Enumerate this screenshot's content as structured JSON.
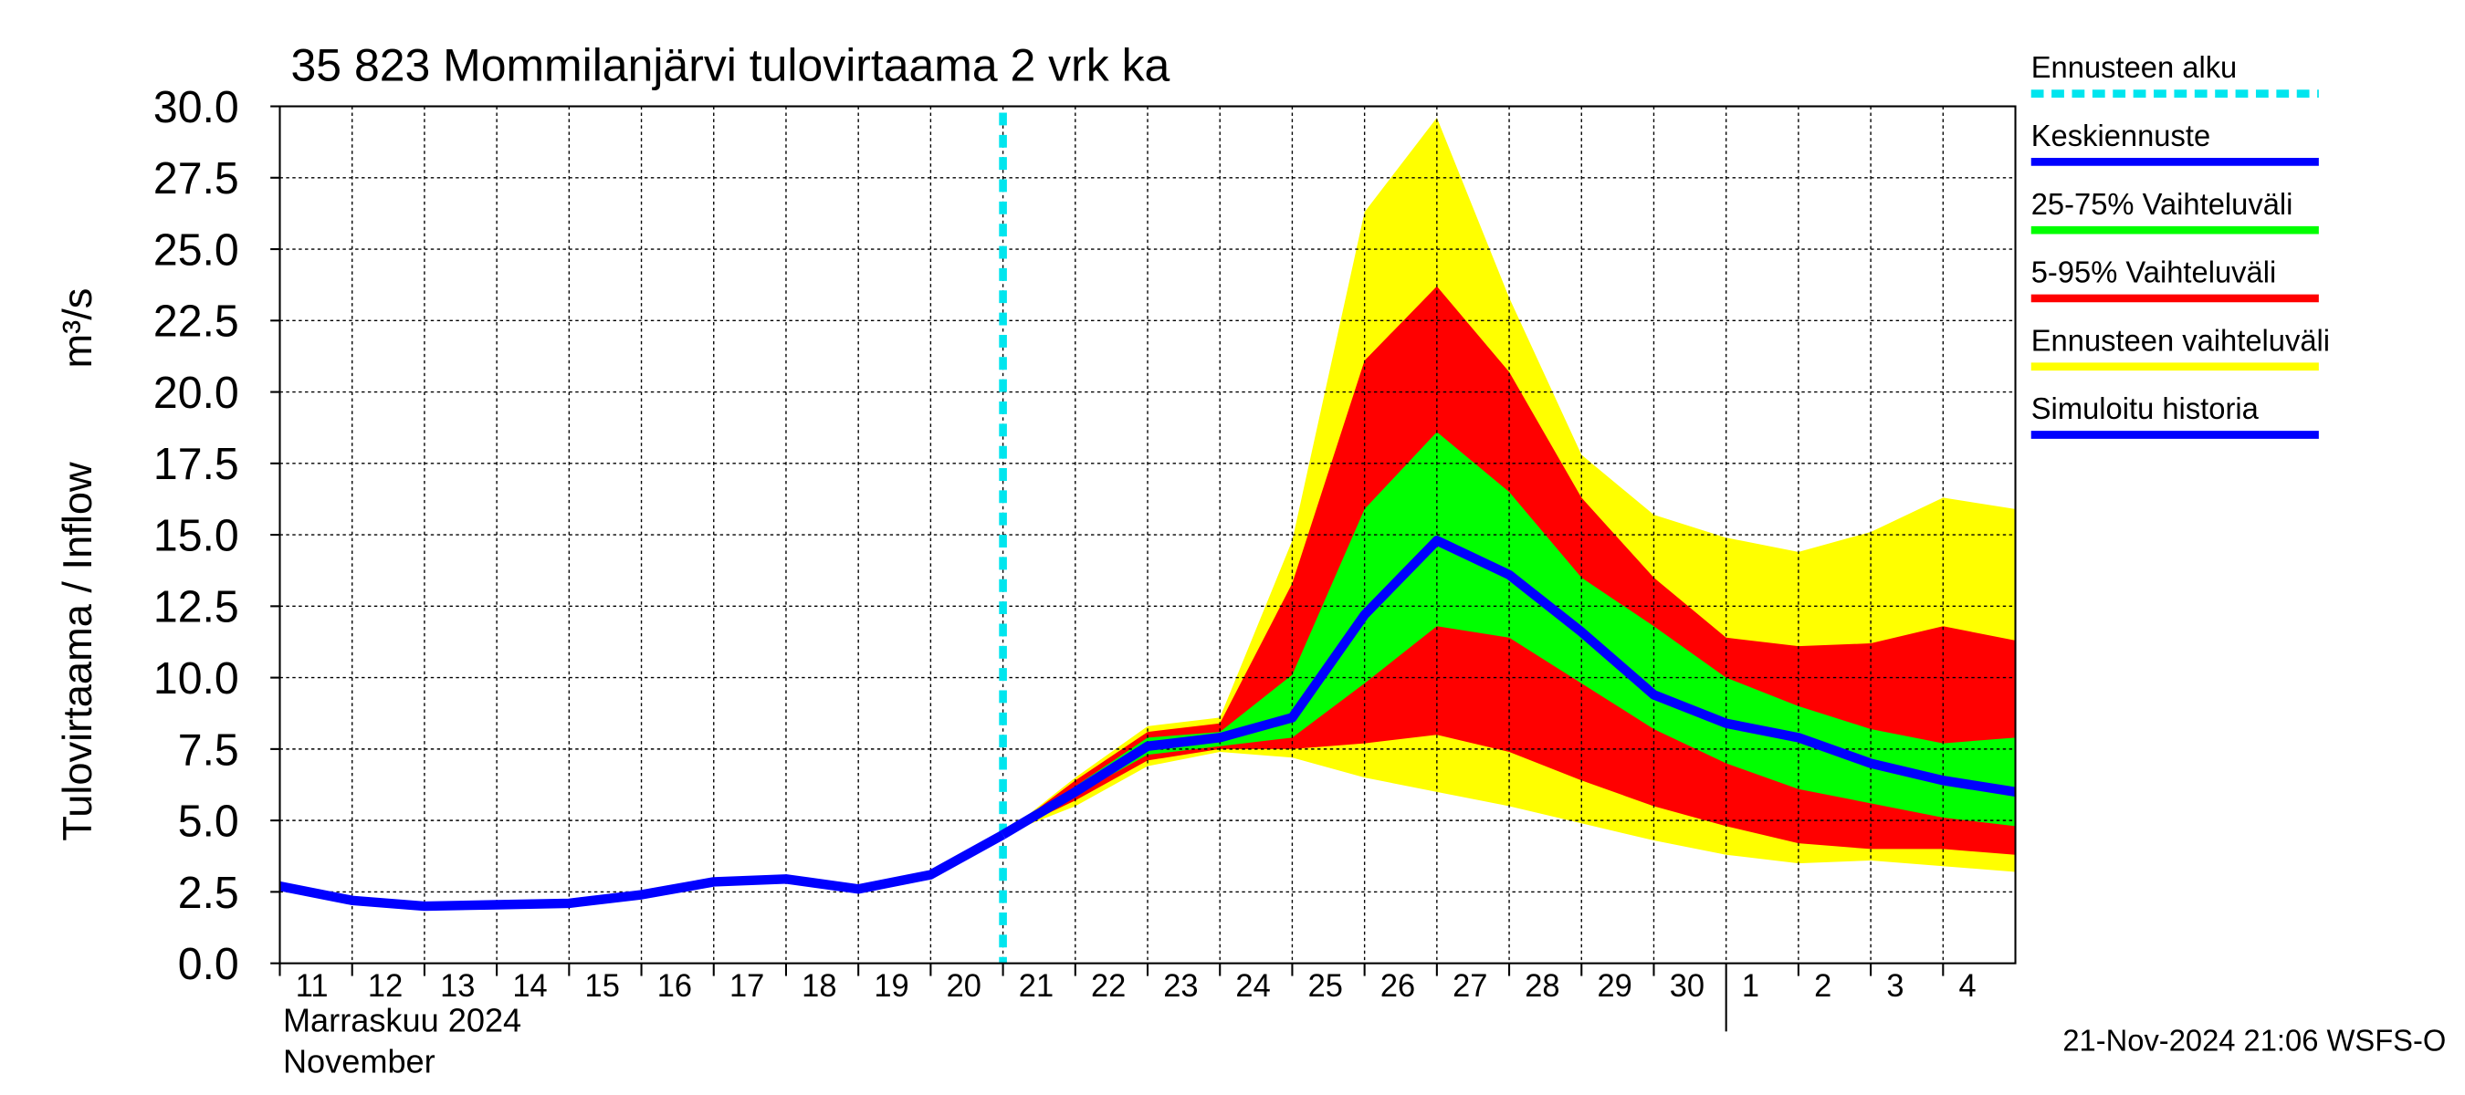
{
  "chart_data": {
    "type": "line",
    "title": "35 823 Mommilanjärvi tulovirtaama 2 vrk ka",
    "y_label": "Tulovirtaama / Inflow",
    "y_unit": "m³/s",
    "month_label": "Marraskuu 2024",
    "month_label_en": "November",
    "footer": "21-Nov-2024 21:06 WSFS-O",
    "grid": true,
    "xlim": [
      "2024-11-11",
      "2024-12-05"
    ],
    "ylim": [
      0,
      30
    ],
    "yticks": [
      {
        "value": 0,
        "label": "0.0"
      },
      {
        "value": 2.5,
        "label": "2.5"
      },
      {
        "value": 5,
        "label": "5.0"
      },
      {
        "value": 7.5,
        "label": "7.5"
      },
      {
        "value": 10,
        "label": "10.0"
      },
      {
        "value": 12.5,
        "label": "12.5"
      },
      {
        "value": 15,
        "label": "15.0"
      },
      {
        "value": 17.5,
        "label": "17.5"
      },
      {
        "value": 20,
        "label": "20.0"
      },
      {
        "value": 22.5,
        "label": "22.5"
      },
      {
        "value": 25,
        "label": "25.0"
      },
      {
        "value": 27.5,
        "label": "27.5"
      },
      {
        "value": 30,
        "label": "30.0"
      }
    ],
    "xticks": [
      {
        "value": "2024-11-11",
        "label": "11"
      },
      {
        "value": "2024-11-12",
        "label": "12"
      },
      {
        "value": "2024-11-13",
        "label": "13"
      },
      {
        "value": "2024-11-14",
        "label": "14"
      },
      {
        "value": "2024-11-15",
        "label": "15"
      },
      {
        "value": "2024-11-16",
        "label": "16"
      },
      {
        "value": "2024-11-17",
        "label": "17"
      },
      {
        "value": "2024-11-18",
        "label": "18"
      },
      {
        "value": "2024-11-19",
        "label": "19"
      },
      {
        "value": "2024-11-20",
        "label": "20"
      },
      {
        "value": "2024-11-21",
        "label": "21"
      },
      {
        "value": "2024-11-22",
        "label": "22"
      },
      {
        "value": "2024-11-23",
        "label": "23"
      },
      {
        "value": "2024-11-24",
        "label": "24"
      },
      {
        "value": "2024-11-25",
        "label": "25"
      },
      {
        "value": "2024-11-26",
        "label": "26"
      },
      {
        "value": "2024-11-27",
        "label": "27"
      },
      {
        "value": "2024-11-28",
        "label": "28"
      },
      {
        "value": "2024-11-29",
        "label": "29"
      },
      {
        "value": "2024-11-30",
        "label": "30"
      },
      {
        "value": "2024-12-01",
        "label": "1"
      },
      {
        "value": "2024-12-02",
        "label": "2"
      },
      {
        "value": "2024-12-03",
        "label": "3"
      },
      {
        "value": "2024-12-04",
        "label": "4"
      }
    ],
    "forecast_start": {
      "name": "Ennusteen alku",
      "x": "2024-11-21",
      "color": "#00e5ee"
    },
    "series": [
      {
        "name": "Keskiennuste",
        "color": "#0000ff",
        "x": [
          "2024-11-21",
          "2024-11-22",
          "2024-11-23",
          "2024-11-24",
          "2024-11-25",
          "2024-11-26",
          "2024-11-27",
          "2024-11-28",
          "2024-11-29",
          "2024-11-30",
          "2024-12-01",
          "2024-12-02",
          "2024-12-03",
          "2024-12-04",
          "2024-12-05"
        ],
        "values": [
          4.5,
          6.0,
          7.6,
          7.9,
          8.6,
          12.2,
          14.8,
          13.6,
          11.6,
          9.4,
          8.4,
          7.9,
          7.0,
          6.4,
          6.0
        ]
      },
      {
        "name": "25-75% Vaihteluväli",
        "color": "#00ff00",
        "x": [
          "2024-11-21",
          "2024-11-22",
          "2024-11-23",
          "2024-11-24",
          "2024-11-25",
          "2024-11-26",
          "2024-11-27",
          "2024-11-28",
          "2024-11-29",
          "2024-11-30",
          "2024-12-01",
          "2024-12-02",
          "2024-12-03",
          "2024-12-04",
          "2024-12-05"
        ],
        "upper": [
          4.5,
          6.2,
          7.9,
          8.1,
          10.1,
          15.9,
          18.6,
          16.5,
          13.5,
          11.8,
          10.0,
          9.0,
          8.2,
          7.7,
          7.9
        ],
        "lower": [
          4.5,
          5.9,
          7.3,
          7.6,
          7.9,
          9.8,
          11.8,
          11.4,
          9.8,
          8.2,
          7.0,
          6.1,
          5.6,
          5.1,
          4.8
        ]
      },
      {
        "name": "5-95% Vaihteluväli",
        "color": "#ff0000",
        "x": [
          "2024-11-21",
          "2024-11-22",
          "2024-11-23",
          "2024-11-24",
          "2024-11-25",
          "2024-11-26",
          "2024-11-27",
          "2024-11-28",
          "2024-11-29",
          "2024-11-30",
          "2024-12-01",
          "2024-12-02",
          "2024-12-03",
          "2024-12-04",
          "2024-12-05"
        ],
        "upper": [
          4.5,
          6.4,
          8.1,
          8.4,
          13.3,
          21.1,
          23.7,
          20.7,
          16.3,
          13.5,
          11.4,
          11.1,
          11.2,
          11.8,
          11.3
        ],
        "lower": [
          4.5,
          5.7,
          7.1,
          7.5,
          7.5,
          7.7,
          8.0,
          7.4,
          6.4,
          5.5,
          4.8,
          4.2,
          4.0,
          4.0,
          3.8
        ]
      },
      {
        "name": "Ennusteen vaihteluväli",
        "color": "#ffff00",
        "x": [
          "2024-11-21",
          "2024-11-22",
          "2024-11-23",
          "2024-11-24",
          "2024-11-25",
          "2024-11-26",
          "2024-11-27",
          "2024-11-28",
          "2024-11-29",
          "2024-11-30",
          "2024-12-01",
          "2024-12-02",
          "2024-12-03",
          "2024-12-04",
          "2024-12-05"
        ],
        "upper": [
          4.5,
          6.5,
          8.3,
          8.6,
          14.8,
          26.3,
          29.6,
          23.3,
          17.8,
          15.7,
          14.9,
          14.4,
          15.1,
          16.3,
          15.9
        ],
        "lower": [
          4.5,
          5.5,
          6.9,
          7.4,
          7.2,
          6.5,
          6.0,
          5.5,
          4.9,
          4.3,
          3.8,
          3.5,
          3.6,
          3.4,
          3.2
        ]
      },
      {
        "name": "Simuloitu historia",
        "color": "#0000ff",
        "x": [
          "2024-11-11",
          "2024-11-12",
          "2024-11-13",
          "2024-11-14",
          "2024-11-15",
          "2024-11-16",
          "2024-11-17",
          "2024-11-18",
          "2024-11-19",
          "2024-11-20",
          "2024-11-21"
        ],
        "values": [
          2.7,
          2.2,
          2.0,
          2.05,
          2.1,
          2.4,
          2.85,
          2.95,
          2.6,
          3.1,
          4.5
        ]
      }
    ]
  }
}
